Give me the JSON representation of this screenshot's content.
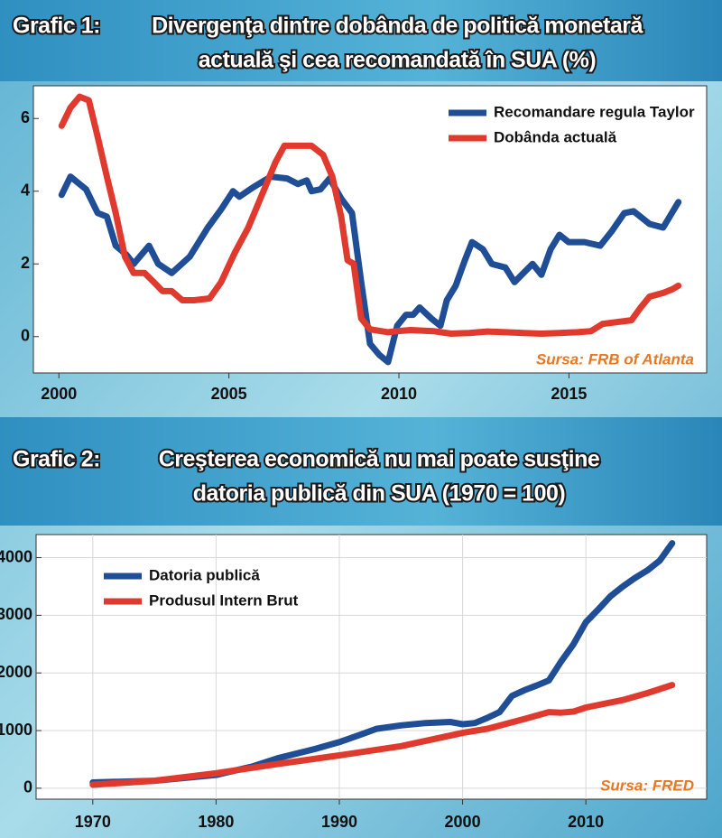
{
  "chart_data": [
    {
      "type": "line",
      "label": "Grafic 1:",
      "title": [
        "Divergenţa dintre dobânda de politică monetară",
        "actuală şi cea recomandată   în SUA (%)"
      ],
      "source": "Sursa: FRB of Atlanta",
      "xlim": [
        1999.25,
        2019.05
      ],
      "xticks": [
        2000,
        2005,
        2010,
        2015
      ],
      "ylim": [
        -1,
        6.9
      ],
      "yticks": [
        0,
        2,
        4,
        6
      ],
      "grid": false,
      "legend": "upper right",
      "series": [
        {
          "name": "Recomandare regula Taylor",
          "color": "#1f4e96",
          "x": [
            2000.08,
            2000.34,
            2000.8,
            2001.14,
            2001.41,
            2001.67,
            2001.99,
            2002.2,
            2002.65,
            2002.92,
            2003.32,
            2003.85,
            2004.38,
            2004.77,
            2005.12,
            2005.31,
            2005.7,
            2006.23,
            2006.71,
            2007.03,
            2007.29,
            2007.43,
            2007.69,
            2007.96,
            2008.3,
            2008.62,
            2008.89,
            2009.15,
            2009.42,
            2009.68,
            2009.95,
            2010.21,
            2010.42,
            2010.61,
            2010.95,
            2011.22,
            2011.41,
            2011.67,
            2011.94,
            2012.15,
            2012.47,
            2012.73,
            2013.13,
            2013.4,
            2013.93,
            2014.19,
            2014.46,
            2014.72,
            2014.99,
            2015.46,
            2015.92,
            2016.26,
            2016.63,
            2016.9,
            2017.37,
            2017.77,
            2018.22
          ],
          "values": [
            3.9,
            4.4,
            4.05,
            3.4,
            3.3,
            2.5,
            2.25,
            2.0,
            2.5,
            2.0,
            1.75,
            2.2,
            3.0,
            3.5,
            4.0,
            3.85,
            4.1,
            4.4,
            4.35,
            4.2,
            4.3,
            4.0,
            4.05,
            4.35,
            3.8,
            3.4,
            1.5,
            -0.2,
            -0.5,
            -0.7,
            0.3,
            0.6,
            0.6,
            0.8,
            0.5,
            0.3,
            1.0,
            1.4,
            2.1,
            2.6,
            2.4,
            2.0,
            1.9,
            1.5,
            2.0,
            1.7,
            2.4,
            2.8,
            2.6,
            2.6,
            2.5,
            2.9,
            3.4,
            3.45,
            3.1,
            3.0,
            3.7
          ]
        },
        {
          "name": "Dobânda actuală",
          "color": "#e03a2e",
          "x": [
            2000.08,
            2000.34,
            2000.61,
            2000.88,
            2001.14,
            2001.41,
            2001.67,
            2001.94,
            2002.2,
            2002.52,
            2002.79,
            2003.05,
            2003.32,
            2003.63,
            2003.98,
            2004.43,
            2004.77,
            2005.17,
            2005.57,
            2005.97,
            2006.37,
            2006.63,
            2007.03,
            2007.43,
            2007.77,
            2008.04,
            2008.3,
            2008.49,
            2008.67,
            2008.89,
            2009.15,
            2009.68,
            2009.95,
            2010.34,
            2011.01,
            2011.54,
            2012.07,
            2012.6,
            2013.13,
            2013.66,
            2014.19,
            2014.72,
            2015.25,
            2015.65,
            2015.99,
            2016.84,
            2017.11,
            2017.37,
            2017.77,
            2018.04,
            2018.22
          ],
          "values": [
            5.8,
            6.3,
            6.6,
            6.5,
            5.5,
            4.4,
            3.4,
            2.2,
            1.75,
            1.75,
            1.5,
            1.25,
            1.25,
            1.0,
            1.0,
            1.05,
            1.5,
            2.3,
            3.0,
            3.9,
            4.8,
            5.25,
            5.25,
            5.25,
            5.0,
            4.4,
            3.3,
            2.1,
            2.0,
            0.5,
            0.2,
            0.12,
            0.15,
            0.18,
            0.15,
            0.08,
            0.1,
            0.14,
            0.12,
            0.1,
            0.08,
            0.1,
            0.12,
            0.15,
            0.35,
            0.45,
            0.8,
            1.1,
            1.2,
            1.3,
            1.4
          ]
        }
      ]
    },
    {
      "type": "line",
      "label": "Grafic 2:",
      "title": [
        "Creşterea economică nu mai poate susţine",
        "datoria publică din SUA (1970 = 100)"
      ],
      "source": "Sursa: FRED",
      "xlim": [
        1965.4,
        2019.8
      ],
      "xticks": [
        1970,
        1980,
        1990,
        2000,
        2010
      ],
      "ylim": [
        -190,
        4400
      ],
      "yticks": [
        0,
        1000,
        2000,
        3000,
        4000
      ],
      "grid": true,
      "legend": "upper left",
      "series": [
        {
          "name": "Datoria publică",
          "color": "#1f4e96",
          "x": [
            1970,
            1975,
            1980,
            1983,
            1985,
            1988,
            1990,
            1992,
            1993,
            1995,
            1997,
            1999,
            2000,
            2001,
            2002,
            2003,
            2004,
            2005,
            2006,
            2007,
            2008,
            2009,
            2010,
            2011,
            2012,
            2013,
            2014,
            2015,
            2016,
            2017
          ],
          "values": [
            100,
            130,
            230,
            380,
            520,
            680,
            800,
            950,
            1030,
            1090,
            1130,
            1150,
            1110,
            1130,
            1220,
            1320,
            1600,
            1700,
            1780,
            1870,
            2200,
            2500,
            2880,
            3100,
            3330,
            3500,
            3650,
            3780,
            3950,
            4250
          ]
        },
        {
          "name": "Produsul Intern Brut",
          "color": "#e03a2e",
          "x": [
            1970,
            1975,
            1980,
            1985,
            1990,
            1995,
            2000,
            2002,
            2005,
            2007,
            2008,
            2009,
            2010,
            2013,
            2015,
            2017
          ],
          "values": [
            60,
            130,
            260,
            420,
            570,
            730,
            960,
            1030,
            1200,
            1320,
            1310,
            1330,
            1400,
            1530,
            1650,
            1790
          ]
        }
      ]
    }
  ]
}
